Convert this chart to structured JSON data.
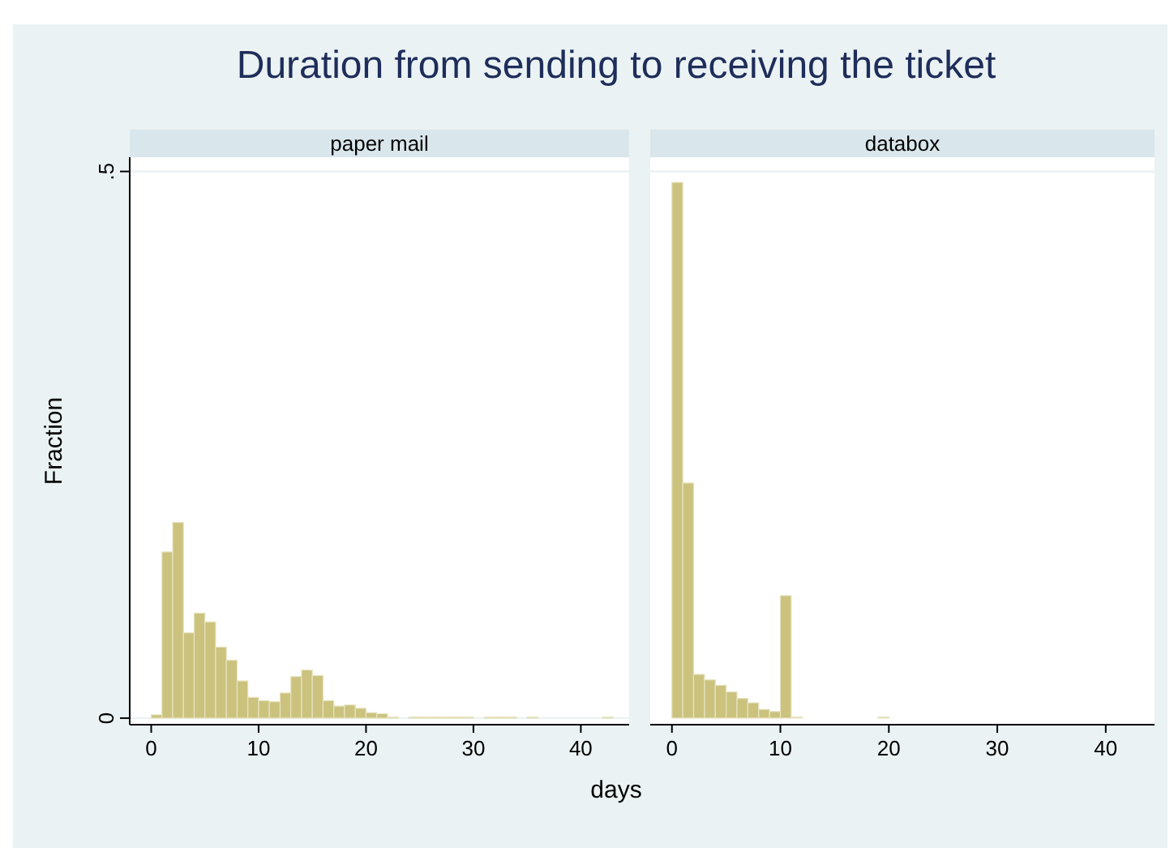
{
  "chart_data": [
    {
      "type": "histogram",
      "title": "Duration from sending to receiving the ticket",
      "subtitle": "paper mail",
      "xlabel": "days",
      "ylabel": "Fraction",
      "bins": [
        0,
        1,
        2,
        3,
        4,
        5,
        6,
        7,
        8,
        9,
        10,
        11,
        12,
        13,
        14,
        15,
        16,
        17,
        18,
        19,
        20,
        21,
        22,
        23,
        24,
        25,
        26,
        27,
        28,
        29,
        30,
        31,
        32,
        33,
        34,
        35,
        36,
        37,
        38,
        39,
        40,
        41,
        42,
        43
      ],
      "values": [
        0.003,
        0.152,
        0.179,
        0.078,
        0.096,
        0.088,
        0.065,
        0.053,
        0.034,
        0.019,
        0.016,
        0.015,
        0.023,
        0.038,
        0.044,
        0.039,
        0.016,
        0.011,
        0.012,
        0.009,
        0.005,
        0.004,
        0.001,
        0,
        0.001,
        0.001,
        0.001,
        0.001,
        0.001,
        0.001,
        0,
        0.001,
        0.001,
        0.001,
        0,
        0.001,
        0,
        0,
        0,
        0,
        0,
        0,
        0.001
      ],
      "color": "#cbc27e",
      "xlim": [
        -2,
        44.5
      ],
      "ylim": [
        -0.006,
        0.513
      ],
      "xticks": [
        0,
        10,
        20,
        30,
        40
      ],
      "yticks": [
        0,
        {
          "value": 0.5,
          "label": ".5"
        }
      ],
      "grid": "y"
    },
    {
      "type": "histogram",
      "subtitle": "databox",
      "bins": [
        0,
        1,
        2,
        3,
        4,
        5,
        6,
        7,
        8,
        9,
        10,
        11,
        12,
        13,
        14,
        15,
        16,
        17,
        18,
        19,
        20
      ],
      "values": [
        0.49,
        0.215,
        0.04,
        0.035,
        0.03,
        0.024,
        0.018,
        0.014,
        0.008,
        0.006,
        0.112,
        0.001,
        0,
        0,
        0,
        0,
        0,
        0,
        0,
        0.001
      ],
      "color": "#cbc27e",
      "xlim": [
        -2,
        44.5
      ],
      "ylim": [
        -0.006,
        0.513
      ],
      "xticks": [
        0,
        10,
        20,
        30,
        40
      ],
      "yticks": [
        {
          "value": 0.5,
          "label": null
        }
      ],
      "grid": "y",
      "tick_labels": "x"
    }
  ]
}
